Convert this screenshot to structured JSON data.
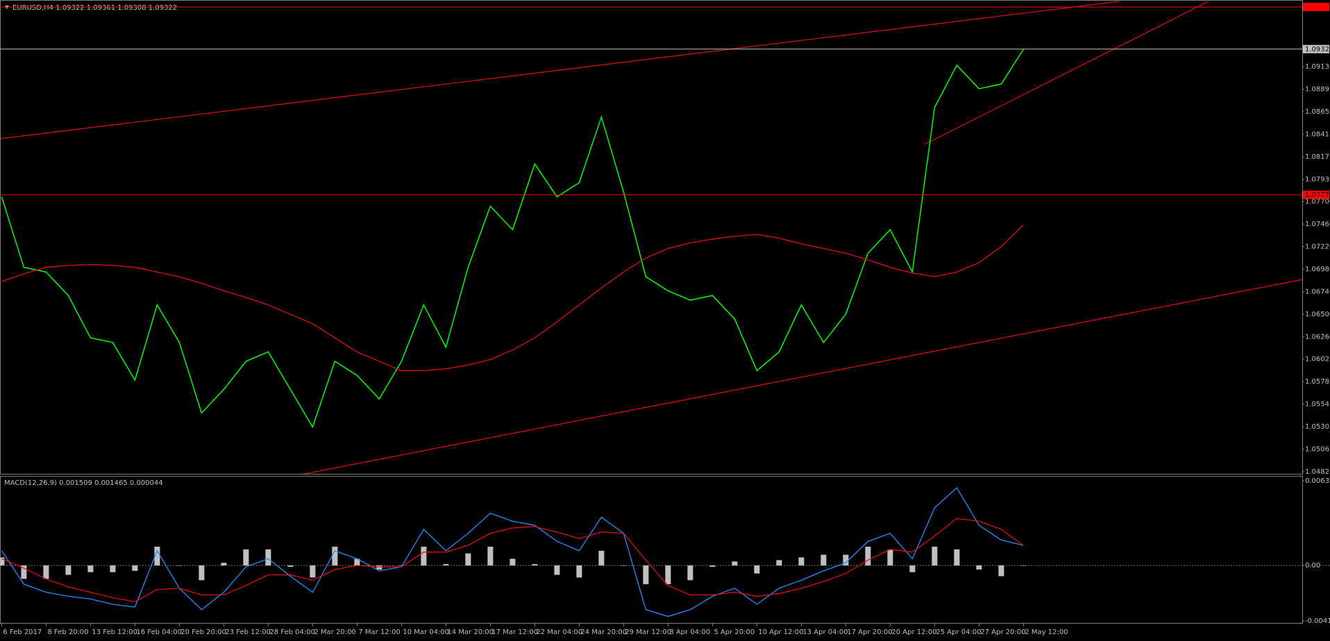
{
  "chart_data": [
    {
      "type": "line",
      "title": "EURUSD,H4  1.09322 1.09361 1.09308 1.09322",
      "categories": [
        "6 Feb 2017",
        null,
        "8 Feb 20:00",
        null,
        "13 Feb 12:00",
        null,
        "16 Feb 04:00",
        null,
        "20 Feb 20:00",
        null,
        "23 Feb 12:00",
        null,
        "28 Feb 04:00",
        null,
        "2 Mar 20:00",
        null,
        "7 Mar 12:00",
        null,
        "10 Mar 04:00",
        null,
        "14 Mar 20:00",
        null,
        "17 Mar 12:00",
        null,
        "22 Mar 04:00",
        null,
        "24 Mar 20:00",
        null,
        "29 Mar 12:00",
        null,
        "3 Apr 04:00",
        null,
        "5 Apr 20:00",
        null,
        "10 Apr 12:00",
        null,
        "13 Apr 04:00",
        null,
        "17 Apr 20:00",
        null,
        "20 Apr 12:00",
        null,
        "25 Apr 04:00",
        null,
        "27 Apr 20:00",
        null,
        "2 May 12:00"
      ],
      "series": [
        {
          "color": "#00ff00",
          "values": [
            1.0775,
            1.07,
            1.0695,
            1.067,
            1.0625,
            1.062,
            1.058,
            1.066,
            1.062,
            1.0545,
            1.057,
            1.06,
            1.061,
            1.057,
            1.053,
            1.06,
            1.0585,
            1.056,
            1.06,
            1.066,
            1.0615,
            1.07,
            1.0765,
            1.074,
            1.081,
            1.0775,
            1.079,
            1.086,
            1.078,
            1.069,
            1.0675,
            1.0665,
            1.067,
            1.0645,
            1.059,
            1.061,
            1.066,
            1.062,
            1.065,
            1.0715,
            1.074,
            1.0695,
            1.087,
            1.0915,
            1.089,
            1.0895,
            1.0932
          ]
        },
        {
          "color": "#e01010",
          "values": [
            1.0685,
            1.0693,
            1.07,
            1.0702,
            1.0703,
            1.0702,
            1.07,
            1.0695,
            1.069,
            1.0683,
            1.0675,
            1.0668,
            1.066,
            1.065,
            1.064,
            1.0625,
            1.061,
            1.06,
            1.059,
            1.059,
            1.0592,
            1.0596,
            1.0602,
            1.0612,
            1.0625,
            1.0642,
            1.066,
            1.0678,
            1.0695,
            1.071,
            1.072,
            1.0726,
            1.073,
            1.0733,
            1.0735,
            1.0731,
            1.0725,
            1.072,
            1.0715,
            1.0708,
            1.07,
            1.0694,
            1.069,
            1.0695,
            1.0705,
            1.0722,
            1.0745
          ]
        }
      ],
      "ylim": [
        1.0481,
        1.098
      ],
      "yticks": [
        1.04825,
        1.05065,
        1.05305,
        1.05545,
        1.05785,
        1.06025,
        {
          "value": 1.0626,
          "label": "1.06260"
        },
        {
          "value": 1.065,
          "label": "1.06500"
        },
        {
          "value": 1.0674,
          "label": "1.06740"
        },
        {
          "value": 1.0698,
          "label": "1.06980"
        },
        {
          "value": 1.0722,
          "label": "1.07220"
        },
        {
          "value": 1.0746,
          "label": "1.07460"
        },
        {
          "value": 1.077,
          "label": "1.07700"
        },
        1.07935,
        1.08175,
        1.08415,
        1.08655,
        1.08895,
        1.09135
      ],
      "levels": [
        {
          "value": 1.0977,
          "color": "#ff0000"
        },
        {
          "value": 1.07771,
          "label": "1.07771",
          "color": "#ff0000"
        },
        {
          "value": 1.09322,
          "label": "1.09322",
          "color": "#c0c0c0"
        }
      ]
    },
    {
      "type": "macd",
      "title": "MACD(12,26,9) 0.001509 0.001465 0.000044",
      "series": [
        {
          "color": "#c0c0c0",
          "style": "histogram",
          "values": [
            0.0006,
            -0.001,
            -0.001,
            -0.0007,
            -0.0005,
            -0.0005,
            -0.0004,
            0.0014,
            0.0,
            -0.0011,
            0.0002,
            0.0012,
            0.0012,
            -0.0001,
            -0.0009,
            0.0014,
            0.0005,
            -0.0003,
            0.0,
            0.0014,
            0.0001,
            0.0009,
            0.0014,
            0.0005,
            0.0001,
            -0.0007,
            -0.0009,
            0.0011,
            0.0,
            -0.0014,
            -0.0014,
            -0.0011,
            -0.0001,
            0.0003,
            -0.0006,
            0.0004,
            0.0006,
            0.0008,
            0.0008,
            0.0014,
            0.0012,
            -0.0005,
            0.0014,
            0.0012,
            -0.0003,
            -0.0008,
            0.0
          ]
        },
        {
          "color": "#1e90ff",
          "style": "line",
          "values": [
            0.0011,
            -0.0014,
            -0.002,
            -0.0023,
            -0.0025,
            -0.0029,
            -0.0031,
            0.0011,
            -0.0017,
            -0.0033,
            -0.002,
            -0.0001,
            0.0005,
            -0.0008,
            -0.002,
            0.0011,
            0.0005,
            -0.0004,
            -0.0001,
            0.0027,
            0.0011,
            0.0024,
            0.0039,
            0.0033,
            0.003,
            0.0018,
            0.0011,
            0.0036,
            0.0024,
            -0.0033,
            -0.0038,
            -0.0033,
            -0.0023,
            -0.0017,
            -0.0029,
            -0.0017,
            -0.0011,
            -0.0004,
            0.0002,
            0.0018,
            0.0024,
            0.0005,
            0.0043,
            0.0058,
            0.003,
            0.0019,
            0.0015
          ]
        },
        {
          "color": "#e01010",
          "style": "line",
          "values": [
            0.0005,
            -0.0002,
            -0.001,
            -0.0016,
            -0.002,
            -0.0024,
            -0.0027,
            -0.0018,
            -0.0017,
            -0.0022,
            -0.0022,
            -0.0015,
            -0.0007,
            -0.0007,
            -0.0011,
            -0.0003,
            0.0,
            -0.0001,
            -0.0001,
            0.001,
            0.001,
            0.0015,
            0.0024,
            0.0028,
            0.0029,
            0.0025,
            0.002,
            0.0025,
            0.0024,
            0.0004,
            -0.0015,
            -0.0022,
            -0.0022,
            -0.002,
            -0.0023,
            -0.0021,
            -0.0017,
            -0.0012,
            -0.0006,
            0.0004,
            0.0012,
            0.001,
            0.0022,
            0.0035,
            0.0033,
            0.0027,
            0.0015
          ]
        }
      ],
      "ylim": [
        -0.004136,
        0.006323
      ],
      "yticks": [
        {
          "value": 0.006323,
          "label": "0.006323"
        },
        {
          "value": 0,
          "label": "0.00"
        },
        {
          "value": -0.004136,
          "label": "-0.004136"
        }
      ]
    }
  ]
}
